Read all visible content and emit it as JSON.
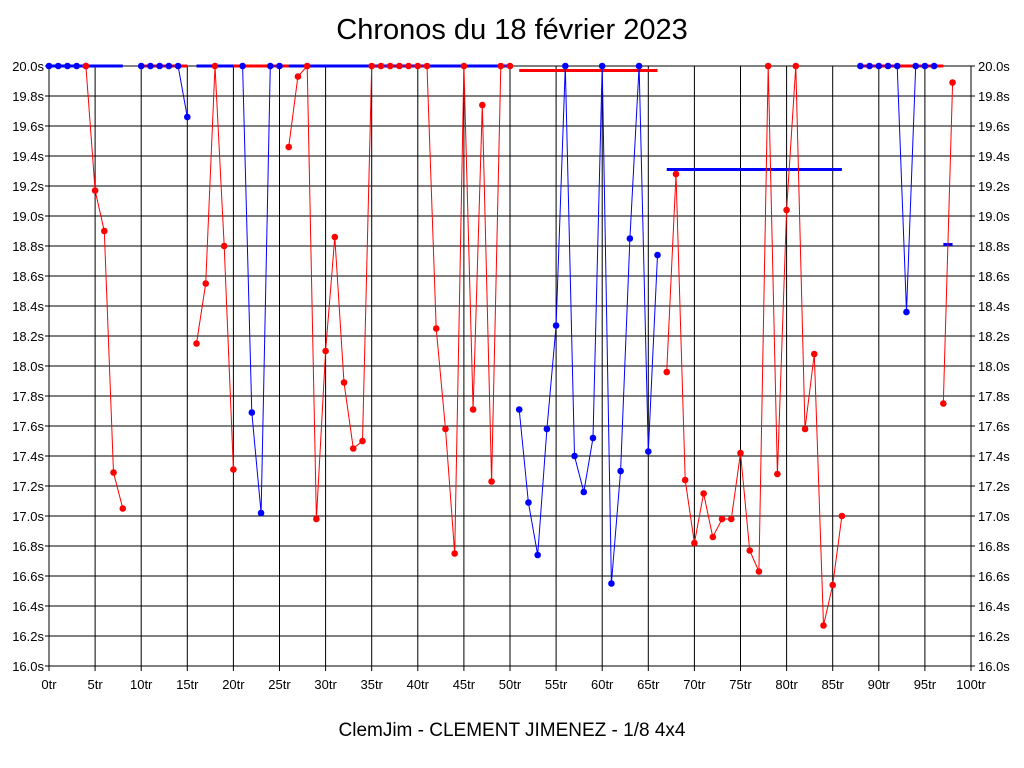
{
  "chart_data": {
    "type": "line",
    "title": "Chronos du 18 février 2023",
    "subtitle": "ClemJim - CLEMENT JIMENEZ - 1/8 4x4",
    "xlabel": "",
    "ylabel": "",
    "xlim": [
      0,
      100
    ],
    "ylim": [
      16.0,
      20.0
    ],
    "grid": true,
    "x_ticks": [
      "0tr",
      "5tr",
      "10tr",
      "15tr",
      "20tr",
      "25tr",
      "30tr",
      "35tr",
      "40tr",
      "45tr",
      "50tr",
      "55tr",
      "60tr",
      "65tr",
      "70tr",
      "75tr",
      "80tr",
      "85tr",
      "90tr",
      "95tr",
      "100tr"
    ],
    "y_ticks": [
      "16.0s",
      "16.2s",
      "16.4s",
      "16.6s",
      "16.8s",
      "17.0s",
      "17.2s",
      "17.4s",
      "17.6s",
      "17.8s",
      "18.0s",
      "18.2s",
      "18.4s",
      "18.6s",
      "18.8s",
      "19.0s",
      "19.2s",
      "19.4s",
      "19.6s",
      "19.8s",
      "20.0s"
    ],
    "colors": {
      "red": "#ff0000",
      "blue": "#0000ff"
    },
    "series": [
      {
        "color": "#0000ff",
        "points": [
          [
            0,
            20.0
          ],
          [
            1,
            20.0
          ],
          [
            2,
            20.0
          ],
          [
            3,
            20.0
          ],
          [
            4,
            20.0
          ]
        ]
      },
      {
        "color": "#ff0000",
        "points": [
          [
            4,
            20.0
          ],
          [
            5,
            19.17
          ],
          [
            6,
            18.9
          ],
          [
            7,
            17.29
          ],
          [
            8,
            17.05
          ]
        ]
      },
      {
        "color": "#0000ff",
        "points": [
          [
            10,
            20.0
          ],
          [
            11,
            20.0
          ],
          [
            12,
            20.0
          ],
          [
            13,
            20.0
          ],
          [
            14,
            20.0
          ],
          [
            15,
            19.66
          ]
        ]
      },
      {
        "color": "#ff0000",
        "points": [
          [
            16,
            18.15
          ],
          [
            17,
            18.55
          ],
          [
            18,
            20.0
          ],
          [
            19,
            18.8
          ],
          [
            20,
            17.31
          ]
        ]
      },
      {
        "color": "#0000ff",
        "points": [
          [
            21,
            20.0
          ],
          [
            22,
            17.69
          ],
          [
            23,
            17.02
          ],
          [
            24,
            20.0
          ],
          [
            25,
            20.0
          ]
        ]
      },
      {
        "color": "#ff0000",
        "points": [
          [
            26,
            19.46
          ],
          [
            27,
            19.93
          ],
          [
            28,
            20.0
          ],
          [
            29,
            16.98
          ],
          [
            30,
            18.1
          ],
          [
            31,
            18.86
          ],
          [
            32,
            17.89
          ],
          [
            33,
            17.45
          ],
          [
            34,
            17.5
          ],
          [
            35,
            20.0
          ],
          [
            36,
            20.0
          ],
          [
            37,
            20.0
          ],
          [
            38,
            20.0
          ],
          [
            39,
            20.0
          ],
          [
            40,
            20.0
          ],
          [
            41,
            20.0
          ],
          [
            42,
            18.25
          ],
          [
            43,
            17.58
          ],
          [
            44,
            16.75
          ],
          [
            45,
            20.0
          ],
          [
            46,
            17.71
          ],
          [
            47,
            19.74
          ],
          [
            48,
            17.23
          ],
          [
            49,
            20.0
          ],
          [
            50,
            20.0
          ]
        ]
      },
      {
        "color": "#0000ff",
        "points": [
          [
            51,
            17.71
          ],
          [
            52,
            17.09
          ],
          [
            53,
            16.74
          ],
          [
            54,
            17.58
          ],
          [
            55,
            18.27
          ],
          [
            56,
            20.0
          ],
          [
            57,
            17.4
          ],
          [
            58,
            17.16
          ],
          [
            59,
            17.52
          ],
          [
            60,
            20.0
          ],
          [
            61,
            16.55
          ],
          [
            62,
            17.3
          ],
          [
            63,
            18.85
          ],
          [
            64,
            20.0
          ],
          [
            65,
            17.43
          ],
          [
            66,
            18.74
          ]
        ]
      },
      {
        "color": "#ff0000",
        "points": [
          [
            67,
            17.96
          ],
          [
            68,
            19.28
          ],
          [
            69,
            17.24
          ],
          [
            70,
            16.82
          ],
          [
            71,
            17.15
          ],
          [
            72,
            16.86
          ],
          [
            73,
            16.98
          ],
          [
            74,
            16.98
          ],
          [
            75,
            17.42
          ],
          [
            76,
            16.77
          ],
          [
            77,
            16.63
          ],
          [
            78,
            20.0
          ],
          [
            79,
            17.28
          ],
          [
            80,
            19.04
          ],
          [
            81,
            20.0
          ],
          [
            82,
            17.58
          ],
          [
            83,
            18.08
          ],
          [
            84,
            16.27
          ],
          [
            85,
            16.54
          ],
          [
            86,
            17.0
          ]
        ]
      },
      {
        "color": "#0000ff",
        "points": [
          [
            88,
            20.0
          ],
          [
            89,
            20.0
          ],
          [
            90,
            20.0
          ],
          [
            91,
            20.0
          ],
          [
            92,
            20.0
          ],
          [
            93,
            18.36
          ],
          [
            94,
            20.0
          ],
          [
            95,
            20.0
          ],
          [
            96,
            20.0
          ]
        ]
      },
      {
        "color": "#ff0000",
        "points": [
          [
            97,
            17.75
          ],
          [
            98,
            19.89
          ]
        ]
      }
    ],
    "segments": [
      {
        "color": "#0000ff",
        "x1": 0,
        "x2": 8,
        "y": 20.0
      },
      {
        "color": "#ff0000",
        "x1": 10,
        "x2": 15,
        "y": 20.0
      },
      {
        "color": "#0000ff",
        "x1": 16,
        "x2": 20,
        "y": 20.0
      },
      {
        "color": "#ff0000",
        "x1": 20,
        "x2": 26,
        "y": 20.0
      },
      {
        "color": "#0000ff",
        "x1": 26,
        "x2": 50,
        "y": 20.0
      },
      {
        "color": "#ff0000",
        "x1": 51,
        "x2": 66,
        "y": 19.97
      },
      {
        "color": "#0000ff",
        "x1": 67,
        "x2": 86,
        "y": 19.31
      },
      {
        "color": "#ff0000",
        "x1": 88,
        "x2": 97,
        "y": 20.0
      },
      {
        "color": "#0000ff",
        "x1": 97,
        "x2": 98,
        "y": 18.81
      }
    ]
  }
}
